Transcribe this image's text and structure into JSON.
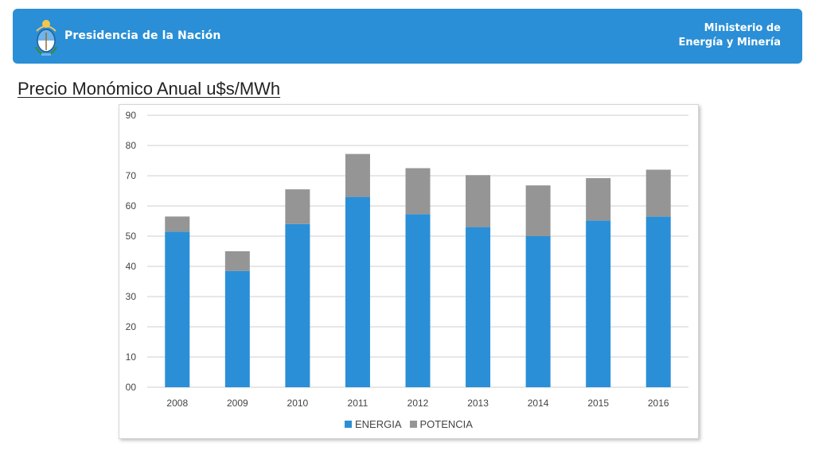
{
  "header": {
    "org_name": "Presidencia de la Nación",
    "ministry_line1": "Ministerio de",
    "ministry_line2": "Energía y Minería",
    "background_color": "#2a8fd6",
    "logo_icon": "national-coat-of-arms"
  },
  "page": {
    "title": "Precio Monómico Anual u$s/MWh"
  },
  "chart_data": {
    "type": "bar",
    "stacked": true,
    "categories": [
      "2008",
      "2009",
      "2010",
      "2011",
      "2012",
      "2013",
      "2014",
      "2015",
      "2016"
    ],
    "series": [
      {
        "name": "ENERGIA",
        "color": "#2a8fd6",
        "values": [
          51.5,
          38.5,
          54.0,
          63.0,
          57.3,
          53.0,
          50.0,
          55.2,
          56.5
        ]
      },
      {
        "name": "POTENCIA",
        "color": "#959595",
        "values": [
          5.0,
          6.5,
          11.5,
          14.2,
          15.2,
          17.2,
          16.8,
          14.0,
          15.5
        ]
      }
    ],
    "ylim": [
      0,
      90
    ],
    "yticks": [
      "00",
      "10",
      "20",
      "30",
      "40",
      "50",
      "60",
      "70",
      "80",
      "90"
    ],
    "ytick_values": [
      0,
      10,
      20,
      30,
      40,
      50,
      60,
      70,
      80,
      90
    ],
    "grid": true,
    "legend_position": "bottom",
    "title": "",
    "xlabel": "",
    "ylabel": ""
  }
}
